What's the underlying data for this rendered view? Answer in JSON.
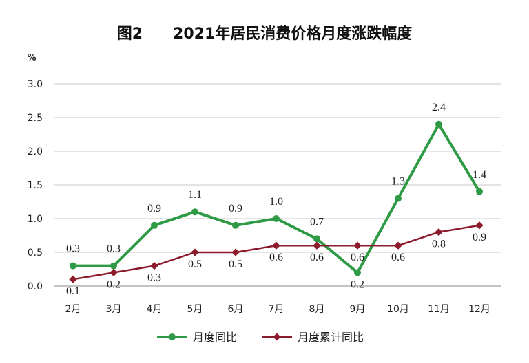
{
  "chart_data": {
    "type": "line",
    "title": "图2　　2021年居民消费价格月度涨跌幅度",
    "ylabel": "%",
    "xlabel": "",
    "ylim": [
      0,
      3.0
    ],
    "yticks": [
      "0.0",
      "0.5",
      "1.0",
      "1.5",
      "2.0",
      "2.5",
      "3.0"
    ],
    "grid": true,
    "legend_position": "bottom",
    "categories": [
      "2月",
      "3月",
      "4月",
      "5月",
      "6月",
      "7月",
      "8月",
      "9月",
      "10月",
      "11月",
      "12月"
    ],
    "series": [
      {
        "name": "月度同比",
        "color": "#2f9a45",
        "values": [
          0.3,
          0.3,
          0.9,
          1.1,
          0.9,
          1.0,
          0.7,
          0.2,
          1.3,
          2.4,
          1.4
        ]
      },
      {
        "name": "月度累计同比",
        "color": "#8c1c2c",
        "values": [
          0.1,
          0.2,
          0.3,
          0.5,
          0.5,
          0.6,
          0.6,
          0.6,
          0.6,
          0.8,
          0.9
        ]
      }
    ]
  }
}
